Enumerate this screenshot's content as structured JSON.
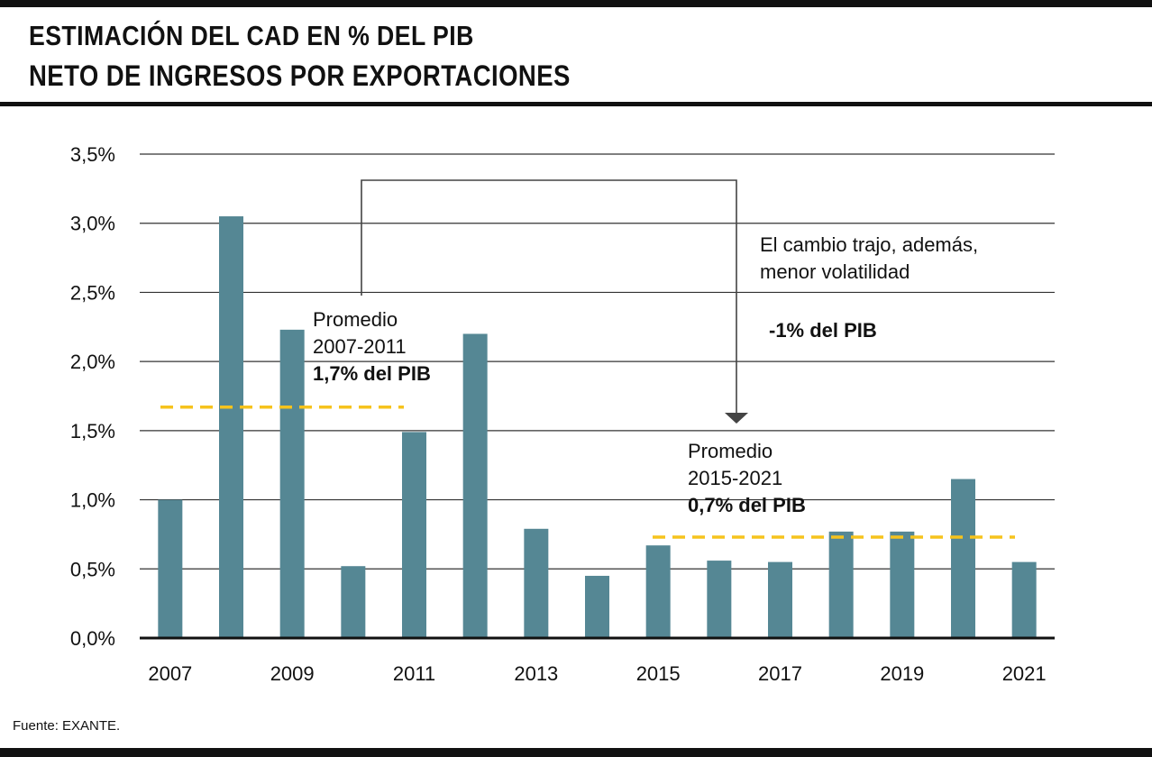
{
  "title": "ESTIMACIÓN DEL CAD EN % DEL PIB",
  "subtitle": "NETO DE INGRESOS POR EXPORTACIONES",
  "source": "Fuente: EXANTE.",
  "colors": {
    "bar": "#558794",
    "average_line": "#f6c31d",
    "grid": "#333333",
    "axis": "#111111",
    "arrow": "#444444"
  },
  "chart_data": {
    "type": "bar",
    "categories": [
      "2007",
      "2008",
      "2009",
      "2010",
      "2011",
      "2012",
      "2013",
      "2014",
      "2015",
      "2016",
      "2017",
      "2018",
      "2019",
      "2020",
      "2021"
    ],
    "values": [
      1.0,
      3.05,
      2.23,
      0.52,
      1.49,
      2.2,
      0.79,
      0.45,
      0.67,
      0.56,
      0.55,
      0.77,
      0.77,
      1.15,
      0.55
    ],
    "x_tick_labels": [
      "2007",
      "2009",
      "2011",
      "2013",
      "2015",
      "2017",
      "2019",
      "2021"
    ],
    "y_ticks": [
      0,
      0.5,
      1.0,
      1.5,
      2.0,
      2.5,
      3.0,
      3.5
    ],
    "y_tick_labels": [
      "0,0%",
      "0,5%",
      "1,0%",
      "1,5%",
      "2,0%",
      "2,5%",
      "3,0%",
      "3,5%"
    ],
    "ylim": [
      0,
      3.5
    ],
    "grid": true,
    "averages": [
      {
        "from": "2007",
        "to": "2011",
        "value": 1.67,
        "lines": [
          "Promedio",
          "2007-2011",
          "1,7% del PIB"
        ]
      },
      {
        "from": "2015",
        "to": "2021",
        "value": 0.73,
        "lines": [
          "Promedio",
          "2015-2021",
          "0,7% del PIB"
        ]
      }
    ],
    "change_note": {
      "lines": [
        "El cambio trajo, además,",
        "menor volatilidad"
      ],
      "value_label": "-1% del PIB"
    }
  }
}
